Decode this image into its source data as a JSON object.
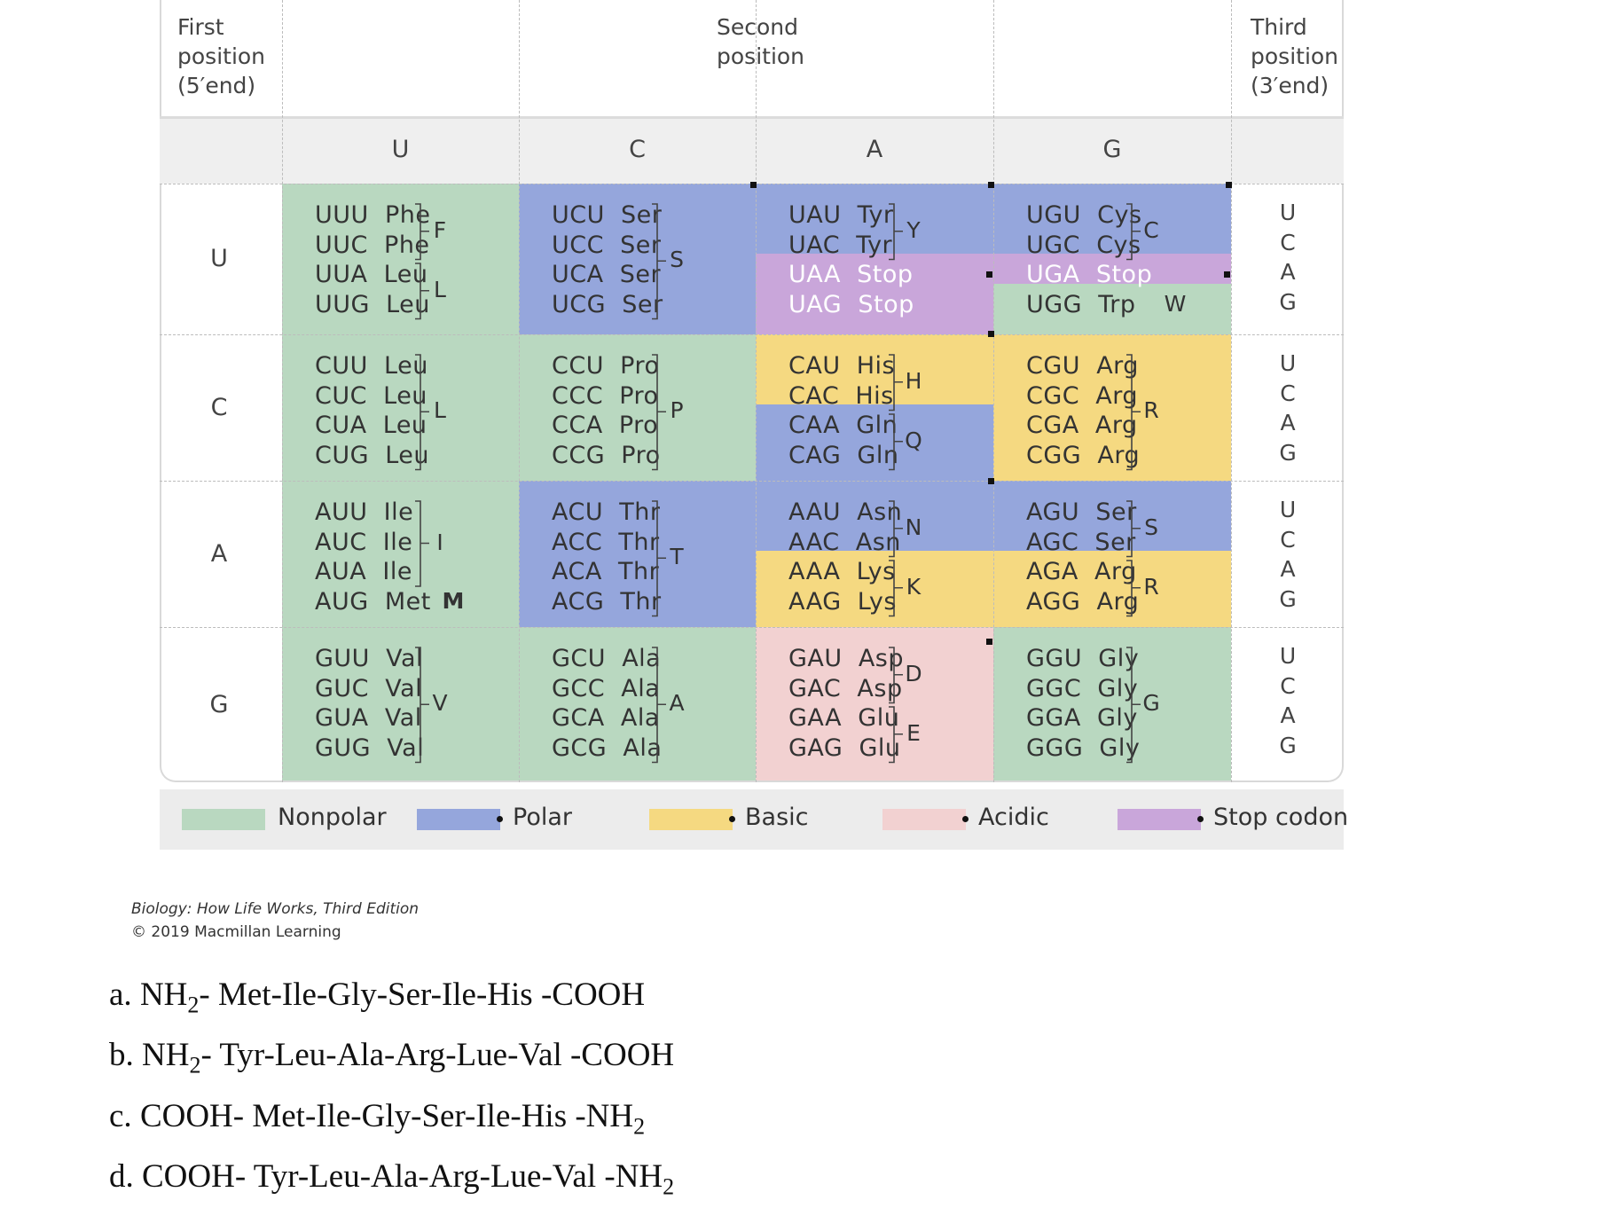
{
  "header": {
    "first_position": [
      "First",
      "position",
      "(5′end)"
    ],
    "second_position": [
      "Second",
      "position"
    ],
    "third_position": [
      "Third",
      "position",
      "(3′end)"
    ]
  },
  "column_heads": [
    "U",
    "C",
    "A",
    "G"
  ],
  "row_heads": [
    "U",
    "C",
    "A",
    "G"
  ],
  "third_letters": [
    "U",
    "C",
    "A",
    "G"
  ],
  "cells": [
    [
      {
        "lines": [
          "UUU  Phe",
          "UUC  Phe",
          "UUA  Leu",
          "UUG  Leu"
        ],
        "labels": [
          "F",
          "L"
        ]
      },
      {
        "lines": [
          "UCU  Ser",
          "UCC  Ser",
          "UCA  Ser",
          "UCG  Ser"
        ],
        "labels": [
          "S"
        ]
      },
      {
        "lines": [
          "UAU  Tyr",
          "UAC  Tyr",
          "UAA  Stop",
          "UAG  Stop"
        ],
        "labels": [
          "Y"
        ]
      },
      {
        "lines": [
          "UGU  Cys",
          "UGC  Cys",
          "UGA  Stop",
          "UGG  Trp"
        ],
        "labels": [
          "C",
          "W"
        ]
      }
    ],
    [
      {
        "lines": [
          "CUU  Leu",
          "CUC  Leu",
          "CUA  Leu",
          "CUG  Leu"
        ],
        "labels": [
          "L"
        ]
      },
      {
        "lines": [
          "CCU  Pro",
          "CCC  Pro",
          "CCA  Pro",
          "CCG  Pro"
        ],
        "labels": [
          "P"
        ]
      },
      {
        "lines": [
          "CAU  His",
          "CAC  His",
          "CAA  Gln",
          "CAG  Gln"
        ],
        "labels": [
          "H",
          "Q"
        ]
      },
      {
        "lines": [
          "CGU  Arg",
          "CGC  Arg",
          "CGA  Arg",
          "CGG  Arg"
        ],
        "labels": [
          "R"
        ]
      }
    ],
    [
      {
        "lines": [
          "AUU  Ile",
          "AUC  Ile",
          "AUA  Ile",
          "AUG  Met"
        ],
        "labels": [
          "I",
          "M"
        ]
      },
      {
        "lines": [
          "ACU  Thr",
          "ACC  Thr",
          "ACA  Thr",
          "ACG  Thr"
        ],
        "labels": [
          "T"
        ]
      },
      {
        "lines": [
          "AAU  Asn",
          "AAC  Asn",
          "AAA  Lys",
          "AAG  Lys"
        ],
        "labels": [
          "N",
          "K"
        ]
      },
      {
        "lines": [
          "AGU  Ser",
          "AGC  Ser",
          "AGA  Arg",
          "AGG  Arg"
        ],
        "labels": [
          "S",
          "R"
        ]
      }
    ],
    [
      {
        "lines": [
          "GUU  Val",
          "GUC  Val",
          "GUA  Val",
          "GUG  Val"
        ],
        "labels": [
          "V"
        ]
      },
      {
        "lines": [
          "GCU  Ala",
          "GCC  Ala",
          "GCA  Ala",
          "GCG  Ala"
        ],
        "labels": [
          "A"
        ]
      },
      {
        "lines": [
          "GAU  Asp",
          "GAC  Asp",
          "GAA  Glu",
          "GAG  Glu"
        ],
        "labels": [
          "D",
          "E"
        ]
      },
      {
        "lines": [
          "GGU  Gly",
          "GGC  Gly",
          "GGA  Gly",
          "GGG  Gly"
        ],
        "labels": [
          "G"
        ]
      }
    ]
  ],
  "colors": {
    "nonpolar": "#b9d8c0",
    "polar": "#95a6dc",
    "basic": "#f5d981",
    "acidic": "#f2d1d1",
    "stop": "#c9a6da"
  },
  "legend": [
    {
      "key": "nonpolar",
      "label": "Nonpolar"
    },
    {
      "key": "polar",
      "label": "Polar"
    },
    {
      "key": "basic",
      "label": "Basic"
    },
    {
      "key": "acidic",
      "label": "Acidic"
    },
    {
      "key": "stop",
      "label": "Stop codon"
    }
  ],
  "credit": {
    "line1": "Biology: How Life Works, Third Edition",
    "line2": "© 2019 Macmillan Learning"
  },
  "options": [
    {
      "letter": "a.",
      "start": "NH",
      "start_sub": "2",
      "start_sep": "- ",
      "sequence": "Met-Ile-Gly-Ser-Ile-His",
      "end": " -COOH",
      "end_sub": ""
    },
    {
      "letter": "b.",
      "start": "NH",
      "start_sub": "2",
      "start_sep": "- ",
      "sequence": "Tyr-Leu-Ala-Arg-Lue-Val",
      "end": " -COOH",
      "end_sub": ""
    },
    {
      "letter": "c.",
      "start": "COOH",
      "start_sub": "",
      "start_sep": "- ",
      "sequence": "Met-Ile-Gly-Ser-Ile-His",
      "end": " -NH",
      "end_sub": "2"
    },
    {
      "letter": "d.",
      "start": "COOH",
      "start_sub": "",
      "start_sep": "- ",
      "sequence": "Tyr-Leu-Ala-Arg-Lue-Val",
      "end": " -NH",
      "end_sub": "2"
    }
  ]
}
